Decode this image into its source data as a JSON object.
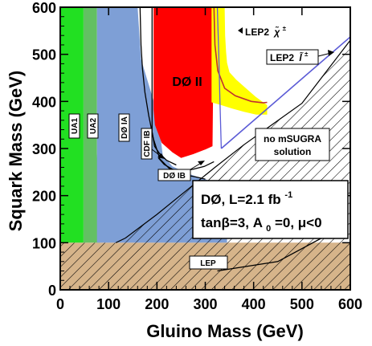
{
  "chart_data": {
    "type": "area",
    "xlabel": "Gluino Mass (GeV)",
    "ylabel": "Squark Mass (GeV)",
    "xlim": [
      0,
      600
    ],
    "ylim": [
      0,
      600
    ],
    "x_ticks": [
      "0",
      "100",
      "200",
      "300",
      "400",
      "500",
      "600"
    ],
    "y_ticks": [
      "0",
      "100",
      "200",
      "300",
      "400",
      "500",
      "600"
    ],
    "colors": {
      "lep_band": "#d6b48a",
      "ua1": "#22e022",
      "ua2": "#63c063",
      "d0_ia": "#7e9fd6",
      "d0_ii": "#ff0000",
      "lep2_chargino": "#ffff00",
      "lep2_slepton_line": "#5b5bd6"
    },
    "regions": [
      {
        "name": "LEP",
        "label": "LEP",
        "points": [
          [
            0,
            0
          ],
          [
            600,
            0
          ],
          [
            600,
            100
          ],
          [
            0,
            100
          ]
        ]
      },
      {
        "name": "UA1",
        "label": "UA1",
        "points": [
          [
            0,
            100
          ],
          [
            0,
            600
          ],
          [
            48,
            600
          ],
          [
            48,
            100
          ]
        ]
      },
      {
        "name": "UA2",
        "label": "UA2",
        "points": [
          [
            48,
            100
          ],
          [
            48,
            600
          ],
          [
            76,
            600
          ],
          [
            76,
            290
          ],
          [
            82,
            160
          ],
          [
            82,
            100
          ]
        ]
      },
      {
        "name": "D0 IA",
        "label": "DØ IA",
        "points": [
          [
            76,
            100
          ],
          [
            76,
            600
          ],
          [
            160,
            600
          ],
          [
            167,
            490
          ],
          [
            195,
            395
          ],
          [
            208,
            320
          ],
          [
            212,
            285
          ],
          [
            232,
            262
          ],
          [
            262,
            248
          ],
          [
            283,
            240
          ],
          [
            300,
            235
          ],
          [
            320,
            225
          ],
          [
            345,
            212
          ],
          [
            345,
            100
          ]
        ]
      },
      {
        "name": "D0 II",
        "label": "DØ II",
        "points": [
          [
            193,
            600
          ],
          [
            193,
            383
          ],
          [
            196,
            350
          ],
          [
            210,
            312
          ],
          [
            232,
            292
          ],
          [
            250,
            280
          ],
          [
            275,
            288
          ],
          [
            300,
            298
          ],
          [
            315,
            305
          ],
          [
            318,
            600
          ]
        ]
      },
      {
        "name": "LEP2 chargino",
        "label": "LEP2 χ̃±",
        "points": [
          [
            313,
            600
          ],
          [
            313,
            398
          ],
          [
            330,
            393
          ],
          [
            355,
            385
          ],
          [
            380,
            378
          ],
          [
            405,
            372
          ],
          [
            428,
            372
          ],
          [
            428,
            392
          ],
          [
            404,
            410
          ],
          [
            384,
            428
          ],
          [
            364,
            446
          ],
          [
            350,
            462
          ],
          [
            345,
            482
          ],
          [
            343,
            505
          ],
          [
            341,
            540
          ],
          [
            340,
            600
          ]
        ]
      }
    ],
    "no_msugra_boundary": [
      [
        115,
        100
      ],
      [
        135,
        110
      ],
      [
        200,
        160
      ],
      [
        260,
        210
      ],
      [
        320,
        260
      ],
      [
        380,
        308
      ],
      [
        440,
        352
      ],
      [
        500,
        396
      ],
      [
        600,
        530
      ]
    ],
    "lep2_slepton_line": [
      [
        333,
        300
      ],
      [
        600,
        537
      ]
    ],
    "contours": [
      {
        "name": "D0 IA",
        "points": [
          [
            165,
            600
          ],
          [
            167,
            520
          ],
          [
            170,
            470
          ],
          [
            175,
            420
          ],
          [
            183,
            370
          ],
          [
            193,
            320
          ],
          [
            206,
            278
          ],
          [
            225,
            258
          ],
          [
            250,
            246
          ],
          [
            283,
            239
          ],
          [
            300,
            235
          ]
        ]
      },
      {
        "name": "CDF IB",
        "points": [
          [
            190,
            600
          ],
          [
            190,
            400
          ],
          [
            190,
            335
          ],
          [
            195,
            305
          ],
          [
            205,
            290
          ],
          [
            220,
            275
          ],
          [
            240,
            265
          ]
        ]
      },
      {
        "name": "D0 IB",
        "points": [
          [
            203,
            280
          ],
          [
            215,
            266
          ],
          [
            232,
            256
          ],
          [
            252,
            252
          ],
          [
            275,
            256
          ],
          [
            298,
            262
          ],
          [
            318,
            272
          ]
        ]
      },
      {
        "name": "LEP2 chargino contour",
        "points": [
          [
            318,
            600
          ],
          [
            320,
            520
          ],
          [
            326,
            465
          ],
          [
            340,
            428
          ],
          [
            362,
            412
          ],
          [
            395,
            400
          ],
          [
            420,
            397
          ],
          [
            428,
            398
          ]
        ]
      },
      {
        "name": "LEP",
        "points": [
          [
            325,
            40
          ],
          [
            450,
            60
          ],
          [
            550,
            115
          ]
        ]
      },
      {
        "name": "LEP2 slepton",
        "points": [
          [
            325,
            600
          ],
          [
            328,
            500
          ],
          [
            330,
            410
          ],
          [
            333,
            300
          ]
        ]
      }
    ]
  },
  "labels": {
    "d0_ii": "DØ II",
    "ua1": "UA1",
    "ua2": "UA2",
    "d0_ia": "DØ IA",
    "cdf_ib": "CDF IB",
    "d0_ib": "DØ IB",
    "lep": "LEP",
    "lep2_chargino": "LEP2",
    "lep2_chargino_sym": "χ̃",
    "lep2_chargino_sup": "±",
    "lep2_slepton": "LEP2",
    "lep2_slepton_sym": "l̃",
    "lep2_slepton_sup": "±",
    "no_msugra_1": "no mSUGRA",
    "no_msugra_2": "solution",
    "legend_line1_a": "DØ, L=2.1 fb",
    "legend_line1_sup": "-1",
    "legend_line2_a": "tanβ=3, A",
    "legend_line2_sub": "0",
    "legend_line2_b": "=0, μ<0"
  }
}
